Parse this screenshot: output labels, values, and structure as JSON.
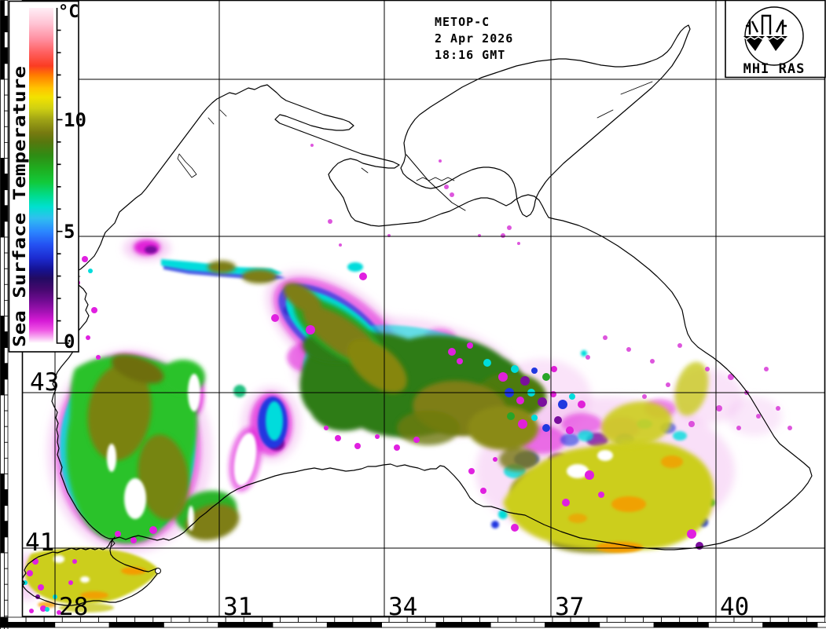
{
  "header": {
    "satellite": "METOP-C",
    "date": "2 Apr 2026",
    "time": "18:16 GMT"
  },
  "logo": {
    "label": "MHI RAS"
  },
  "colorbar": {
    "title": "Sea Surface Temperature",
    "unit": "°C",
    "tick_labels": {
      "t10": "10",
      "t5": "5",
      "t0": "0"
    },
    "range": {
      "min": 0,
      "max": 15
    },
    "palette": [
      {
        "t": 15.0,
        "color": "#ffeef6"
      },
      {
        "t": 14.3,
        "color": "#ffc4d4"
      },
      {
        "t": 13.6,
        "color": "#ff8fa0"
      },
      {
        "t": 13.0,
        "color": "#ff5f5f"
      },
      {
        "t": 12.4,
        "color": "#fb3c22"
      },
      {
        "t": 12.0,
        "color": "#ff7a00"
      },
      {
        "t": 11.4,
        "color": "#ffc400"
      },
      {
        "t": 11.0,
        "color": "#f2e200"
      },
      {
        "t": 10.5,
        "color": "#cfd012"
      },
      {
        "t": 10.0,
        "color": "#9fa315"
      },
      {
        "t": 9.4,
        "color": "#767a10"
      },
      {
        "t": 9.0,
        "color": "#57770e"
      },
      {
        "t": 8.4,
        "color": "#2f8c14"
      },
      {
        "t": 7.8,
        "color": "#1fae1f"
      },
      {
        "t": 7.2,
        "color": "#12c93a"
      },
      {
        "t": 6.6,
        "color": "#00dc8c"
      },
      {
        "t": 6.1,
        "color": "#00e0cf"
      },
      {
        "t": 5.6,
        "color": "#2fc0ef"
      },
      {
        "t": 5.0,
        "color": "#2b87ff"
      },
      {
        "t": 4.4,
        "color": "#2451f2"
      },
      {
        "t": 3.8,
        "color": "#1c2bd0"
      },
      {
        "t": 3.3,
        "color": "#151293"
      },
      {
        "t": 2.9,
        "color": "#220b62"
      },
      {
        "t": 2.4,
        "color": "#46086f"
      },
      {
        "t": 1.9,
        "color": "#700b92"
      },
      {
        "t": 1.4,
        "color": "#a512b5"
      },
      {
        "t": 1.0,
        "color": "#d61ad6"
      },
      {
        "t": 0.6,
        "color": "#ee52e4"
      },
      {
        "t": 0.3,
        "color": "#f7a5f0"
      },
      {
        "t": 0.0,
        "color": "#ffffff"
      }
    ]
  },
  "map": {
    "lat_labels": [
      "43",
      "41"
    ],
    "lon_labels": [
      "28",
      "31",
      "34",
      "37",
      "40"
    ],
    "grid": {
      "lon_values": [
        28,
        31,
        34,
        37,
        40
      ],
      "lat_values": [
        47,
        45,
        43,
        41
      ]
    },
    "sst_colors": {
      "yellow": "#ccce1e",
      "orange": "#f49c00",
      "olive": "#7e7e12",
      "dark_green": "#2e7c14",
      "bright_green": "#2cc22c",
      "cyan": "#00dcdc",
      "blue": "#2038e0",
      "navy": "#151293",
      "purple": "#7a0f9e",
      "magenta": "#e020d8",
      "pale_pink": "#f0b0ee",
      "cloud": "#ffffff"
    }
  }
}
